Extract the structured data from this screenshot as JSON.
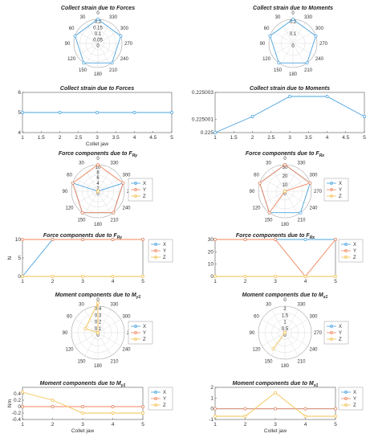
{
  "colors": {
    "X": "#4aa3df",
    "Y": "#f0855c",
    "Z": "#f2c14e",
    "grid": "#dddddd",
    "axis": "#555555"
  },
  "chart_data": [
    {
      "id": "c1",
      "type": "polar",
      "title": "Collect strain due to Forces",
      "angle_ticks": [
        "0",
        "30",
        "60",
        "90",
        "120",
        "150",
        "180",
        "210",
        "240",
        "270",
        "300",
        "330"
      ],
      "r_ticks": [
        "0.2",
        "0.15",
        "0.1",
        "0.05",
        "0"
      ],
      "rlim": [
        0,
        0.2
      ],
      "series": [
        {
          "color": "X",
          "theta": [
            0,
            72,
            144,
            216,
            288
          ],
          "r": [
            0.2,
            0.2,
            0.2,
            0.2,
            0.2
          ]
        }
      ]
    },
    {
      "id": "c2",
      "type": "polar",
      "title": "Collect strain due to Moments",
      "angle_ticks": [
        "0",
        "30",
        "60",
        "90",
        "120",
        "150",
        "180",
        "210",
        "240",
        "270",
        "300",
        "330"
      ],
      "r_ticks": [
        "0.2",
        "0.1",
        "0"
      ],
      "rlim": [
        0,
        0.2
      ],
      "series": [
        {
          "color": "X",
          "theta": [
            0,
            72,
            144,
            216,
            288
          ],
          "r": [
            0.2,
            0.2,
            0.2,
            0.2,
            0.2
          ]
        }
      ]
    },
    {
      "id": "c3",
      "type": "line",
      "title": "Collect strain due to Forces",
      "xlabel": "Collet jaw",
      "ylabel": "",
      "xlim": [
        1,
        5
      ],
      "ylim": [
        4,
        6
      ],
      "xticks": [
        1,
        1.5,
        2,
        2.5,
        3,
        3.5,
        4,
        4.5,
        5
      ],
      "xtick_labels": [
        "1",
        "1.5",
        "2",
        "2.5",
        "3",
        "3.5",
        "4",
        "4.5",
        "5"
      ],
      "yticks": [
        4,
        5,
        6
      ],
      "ytick_labels": [
        "4",
        "5",
        "6"
      ],
      "series": [
        {
          "color": "X",
          "x": [
            1,
            2,
            3,
            4,
            5
          ],
          "y": [
            5,
            5,
            5,
            5,
            5
          ]
        }
      ]
    },
    {
      "id": "c4",
      "type": "line",
      "title": "Collect strain due to Moments",
      "xlabel": "",
      "ylabel": "",
      "xlim": [
        1,
        5
      ],
      "ylim": [
        0.225,
        0.225003
      ],
      "xticks": [
        1,
        1.5,
        2,
        2.5,
        3,
        3.5,
        4,
        4.5,
        5
      ],
      "xtick_labels": [
        "1",
        "1.5",
        "2",
        "2.5",
        "3",
        "3.5",
        "4",
        "4.5",
        "5"
      ],
      "yticks": [
        0.225,
        0.225001,
        0.225003
      ],
      "ytick_labels": [
        "0.225",
        "0.225001",
        "0.225003"
      ],
      "series": [
        {
          "color": "X",
          "x": [
            1,
            2,
            3,
            4,
            5
          ],
          "y": [
            0.225,
            0.2250012,
            0.2250027,
            0.2250027,
            0.2250012
          ]
        }
      ]
    },
    {
      "id": "c5",
      "type": "polar",
      "title": "Force components due to F",
      "title_sub": "Ry",
      "angle_ticks": [
        "0",
        "30",
        "60",
        "90",
        "120",
        "150",
        "180",
        "210",
        "240",
        "270",
        "300",
        "330"
      ],
      "r_ticks": [
        "10",
        "8",
        "6",
        "4",
        "2",
        "0"
      ],
      "rlim": [
        0,
        10
      ],
      "legend": [
        "X",
        "Y",
        "Z"
      ],
      "series": [
        {
          "color": "X",
          "theta": [
            0,
            72,
            144,
            216,
            288
          ],
          "r": [
            0,
            10,
            10,
            10,
            10
          ]
        },
        {
          "color": "Y",
          "theta": [
            0,
            72,
            144,
            216,
            288
          ],
          "r": [
            10,
            10,
            10,
            10,
            10
          ]
        },
        {
          "color": "Z",
          "theta": [
            0,
            72,
            144,
            216,
            288
          ],
          "r": [
            0,
            0,
            0,
            0,
            0
          ]
        }
      ]
    },
    {
      "id": "c6",
      "type": "polar",
      "title": "Force components due to F",
      "title_sub": "Rx",
      "angle_ticks": [
        "0",
        "30",
        "60",
        "90",
        "120",
        "150",
        "180",
        "210",
        "240",
        "270",
        "300",
        "330"
      ],
      "r_ticks": [
        "30",
        "20",
        "10",
        "0"
      ],
      "rlim": [
        0,
        30
      ],
      "legend": [
        "X",
        "Y",
        "Z"
      ],
      "series": [
        {
          "color": "X",
          "theta": [
            0,
            72,
            144,
            216,
            288
          ],
          "r": [
            30,
            30,
            30,
            30,
            30
          ]
        },
        {
          "color": "Y",
          "theta": [
            0,
            72,
            144,
            216,
            288
          ],
          "r": [
            30,
            30,
            30,
            0,
            30
          ]
        },
        {
          "color": "Z",
          "theta": [
            0,
            72,
            144,
            216,
            288
          ],
          "r": [
            0,
            0,
            0,
            0,
            0
          ]
        }
      ]
    },
    {
      "id": "c7",
      "type": "line",
      "title": "Force components due to F",
      "title_sub": "Ry",
      "xlabel": "",
      "ylabel": "N",
      "xlim": [
        1,
        5
      ],
      "ylim": [
        0,
        10
      ],
      "xticks": [
        1,
        2,
        3,
        4,
        5
      ],
      "xtick_labels": [
        "1",
        "2",
        "3",
        "4",
        "5"
      ],
      "yticks": [
        0,
        5,
        10
      ],
      "ytick_labels": [
        "0",
        "5",
        "10"
      ],
      "legend": [
        "X",
        "Y",
        "Z"
      ],
      "series": [
        {
          "color": "X",
          "x": [
            1,
            2,
            3,
            4,
            5
          ],
          "y": [
            0,
            10,
            10,
            10,
            10
          ]
        },
        {
          "color": "Y",
          "x": [
            1,
            2,
            3,
            4,
            5
          ],
          "y": [
            10,
            10,
            10,
            10,
            10
          ]
        },
        {
          "color": "Z",
          "x": [
            1,
            2,
            3,
            4,
            5
          ],
          "y": [
            0,
            0,
            0,
            0,
            0
          ]
        }
      ]
    },
    {
      "id": "c8",
      "type": "line",
      "title": "Force components due to F",
      "title_sub": "Rx",
      "xlabel": "",
      "ylabel": "",
      "xlim": [
        1,
        5
      ],
      "ylim": [
        0,
        30
      ],
      "xticks": [
        1,
        2,
        3,
        4,
        5
      ],
      "xtick_labels": [
        "1",
        "2",
        "3",
        "4",
        "5"
      ],
      "yticks": [
        0,
        10,
        20,
        30
      ],
      "ytick_labels": [
        "0",
        "10",
        "20",
        "30"
      ],
      "legend": [
        "X",
        "Y",
        "Z"
      ],
      "series": [
        {
          "color": "X",
          "x": [
            1,
            2,
            3,
            4,
            5
          ],
          "y": [
            30,
            30,
            30,
            30,
            30
          ]
        },
        {
          "color": "Y",
          "x": [
            1,
            2,
            3,
            4,
            5
          ],
          "y": [
            30,
            30,
            30,
            0,
            30
          ]
        },
        {
          "color": "Z",
          "x": [
            1,
            2,
            3,
            4,
            5
          ],
          "y": [
            0,
            0,
            0,
            0,
            0
          ]
        }
      ]
    },
    {
      "id": "c9",
      "type": "polar",
      "title": "Moment components due to M",
      "title_sub": "y1",
      "angle_ticks": [
        "0",
        "30",
        "60",
        "90",
        "120",
        "150",
        "180",
        "210",
        "240",
        "270",
        "300",
        "330"
      ],
      "r_ticks": [
        "0.4",
        "0.3",
        "0.2",
        "0.1",
        "0"
      ],
      "rlim": [
        0,
        0.4
      ],
      "legend": [
        "X",
        "Y",
        "Z"
      ],
      "series": [
        {
          "color": "X",
          "theta": [
            0,
            72,
            144,
            216,
            288
          ],
          "r": [
            0,
            0,
            0,
            0,
            0
          ]
        },
        {
          "color": "Y",
          "theta": [
            0,
            72,
            144,
            216,
            288
          ],
          "r": [
            0,
            0,
            0,
            0,
            0
          ]
        },
        {
          "color": "Z",
          "theta": [
            0,
            72,
            144,
            216,
            288
          ],
          "r": [
            0.45,
            0.2,
            0,
            0,
            0
          ]
        }
      ]
    },
    {
      "id": "c10",
      "type": "polar",
      "title": "Moment components due to M",
      "title_sub": "x1",
      "angle_ticks": [
        "0",
        "30",
        "60",
        "90",
        "120",
        "150",
        "180",
        "210",
        "240",
        "270",
        "300",
        "330"
      ],
      "r_ticks": [
        "2",
        "1.5",
        "1",
        "0.5",
        "0"
      ],
      "rlim": [
        0,
        2
      ],
      "legend": [
        "X",
        "Y",
        "Z"
      ],
      "series": [
        {
          "color": "X",
          "theta": [
            0,
            72,
            144,
            216,
            288
          ],
          "r": [
            0,
            0,
            0,
            0,
            0
          ]
        },
        {
          "color": "Y",
          "theta": [
            0,
            72,
            144,
            216,
            288
          ],
          "r": [
            0,
            0,
            0,
            0,
            0
          ]
        },
        {
          "color": "Z",
          "theta": [
            0,
            72,
            144,
            216,
            288
          ],
          "r": [
            0,
            0,
            1.5,
            0,
            0
          ]
        }
      ]
    },
    {
      "id": "c11",
      "type": "line",
      "title": "Moment components due to M",
      "title_sub": "y1",
      "xlabel": "Collet jaw",
      "ylabel": "Nm",
      "xlim": [
        1,
        5
      ],
      "ylim": [
        -0.4,
        0.6
      ],
      "xticks": [
        1,
        2,
        3,
        4,
        5
      ],
      "xtick_labels": [
        "1",
        "2",
        "3",
        "4",
        "5"
      ],
      "yticks": [
        -0.4,
        -0.2,
        0,
        0.2,
        0.4
      ],
      "ytick_labels": [
        "-0.4",
        "-0.2",
        "0",
        "0.2",
        "0.4"
      ],
      "legend": [
        "X",
        "Y",
        "Z"
      ],
      "series": [
        {
          "color": "X",
          "x": [
            1,
            2,
            3,
            4,
            5
          ],
          "y": [
            0,
            0,
            0,
            0,
            0
          ]
        },
        {
          "color": "Y",
          "x": [
            1,
            2,
            3,
            4,
            5
          ],
          "y": [
            0,
            0,
            0,
            0,
            0
          ]
        },
        {
          "color": "Z",
          "x": [
            1,
            2,
            3,
            4,
            5
          ],
          "y": [
            0.45,
            0.2,
            -0.2,
            -0.2,
            -0.2
          ]
        }
      ]
    },
    {
      "id": "c12",
      "type": "line",
      "title": "Moment components due to M",
      "title_sub": "x1",
      "xlabel": "Collet jaw",
      "ylabel": "",
      "xlim": [
        1,
        5
      ],
      "ylim": [
        -1,
        2
      ],
      "xticks": [
        1,
        2,
        3,
        4,
        5
      ],
      "xtick_labels": [
        "1",
        "2",
        "3",
        "4",
        "5"
      ],
      "yticks": [
        -1,
        0,
        1,
        2
      ],
      "ytick_labels": [
        "-1",
        "0",
        "1",
        "2"
      ],
      "legend": [
        "X",
        "Y",
        "Z"
      ],
      "series": [
        {
          "color": "X",
          "x": [
            1,
            2,
            3,
            4,
            5
          ],
          "y": [
            0,
            0,
            0,
            0,
            0
          ]
        },
        {
          "color": "Y",
          "x": [
            1,
            2,
            3,
            4,
            5
          ],
          "y": [
            0,
            0,
            0,
            0,
            0
          ]
        },
        {
          "color": "Z",
          "x": [
            1,
            2,
            3,
            4,
            5
          ],
          "y": [
            -0.7,
            -0.7,
            1.5,
            -0.7,
            -0.7
          ]
        }
      ]
    }
  ]
}
